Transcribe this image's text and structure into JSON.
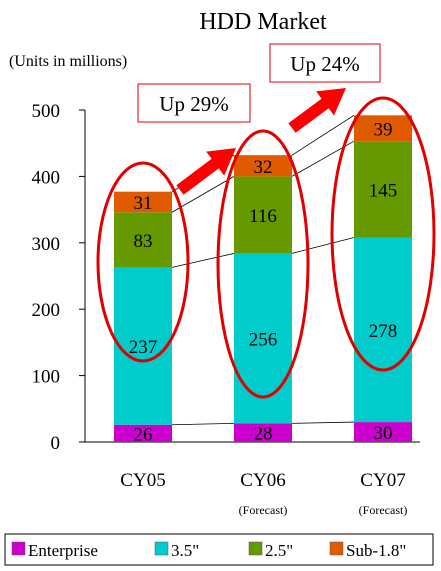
{
  "chart_data": {
    "type": "bar",
    "stacked": true,
    "title": "HDD Market",
    "unit_label": "(Units in millions)",
    "categories": [
      "CY05",
      "CY06",
      "CY07"
    ],
    "category_notes": [
      "",
      "(Forecast)",
      "(Forecast)"
    ],
    "yticks": [
      0,
      100,
      200,
      300,
      400,
      500
    ],
    "ylim": [
      0,
      500
    ],
    "series": [
      {
        "name": "Enterprise",
        "color": "#cc00cc",
        "values": [
          26,
          28,
          30
        ]
      },
      {
        "name": "3.5\"",
        "color": "#00cccc",
        "values": [
          237,
          256,
          278
        ]
      },
      {
        "name": "2.5\"",
        "color": "#669900",
        "values": [
          83,
          116,
          145
        ]
      },
      {
        "name": "Sub-1.8\"",
        "color": "#e05a00",
        "values": [
          31,
          32,
          39
        ]
      }
    ],
    "annotations": [
      {
        "text": "Up 29%",
        "between": [
          "CY05",
          "CY06"
        ]
      },
      {
        "text": "Up 24%",
        "between": [
          "CY06",
          "CY07"
        ]
      }
    ],
    "legend_position": "bottom",
    "grid": false
  },
  "colors": {
    "title": "#1a1ab3",
    "highlight_ellipse": "#e00000",
    "arrow": "#ff0000",
    "annotation_text": "#e00000"
  }
}
